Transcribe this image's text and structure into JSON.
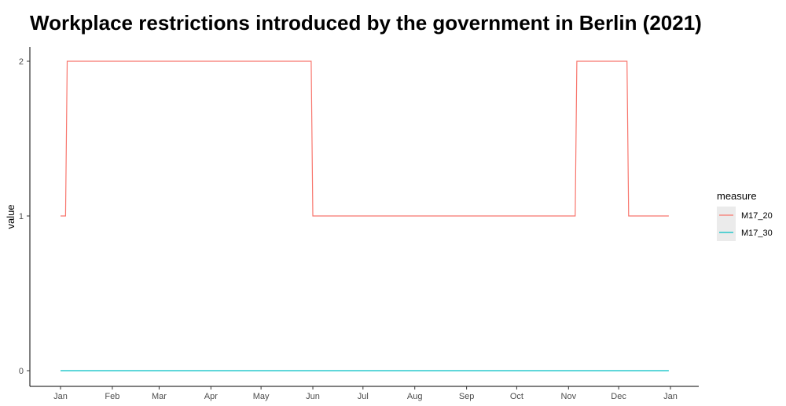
{
  "chart_data": {
    "type": "line",
    "title": "Workplace restrictions introduced by the government in Berlin (2021)",
    "xlabel": "",
    "ylabel": "value",
    "x_ticks": [
      "Jan",
      "Feb",
      "Mar",
      "Apr",
      "May",
      "Jun",
      "Jul",
      "Aug",
      "Sep",
      "Oct",
      "Nov",
      "Dec",
      "Jan"
    ],
    "y_ticks": [
      "0",
      "1",
      "2"
    ],
    "xlim": [
      "2021-01-01",
      "2022-01-01"
    ],
    "ylim": [
      0,
      2
    ],
    "grid": false,
    "legend": {
      "title": "measure",
      "position": "right"
    },
    "series": [
      {
        "name": "M17_20",
        "color": "#F8766D",
        "points": [
          [
            "2021-01-01",
            1
          ],
          [
            "2021-01-04",
            1
          ],
          [
            "2021-01-05",
            2
          ],
          [
            "2021-05-31",
            2
          ],
          [
            "2021-06-01",
            1
          ],
          [
            "2021-11-05",
            1
          ],
          [
            "2021-11-06",
            2
          ],
          [
            "2021-12-06",
            2
          ],
          [
            "2021-12-07",
            1
          ],
          [
            "2021-12-31",
            1
          ]
        ]
      },
      {
        "name": "M17_30",
        "color": "#00BFC4",
        "points": [
          [
            "2021-01-01",
            0
          ],
          [
            "2021-12-31",
            0
          ]
        ]
      }
    ]
  }
}
